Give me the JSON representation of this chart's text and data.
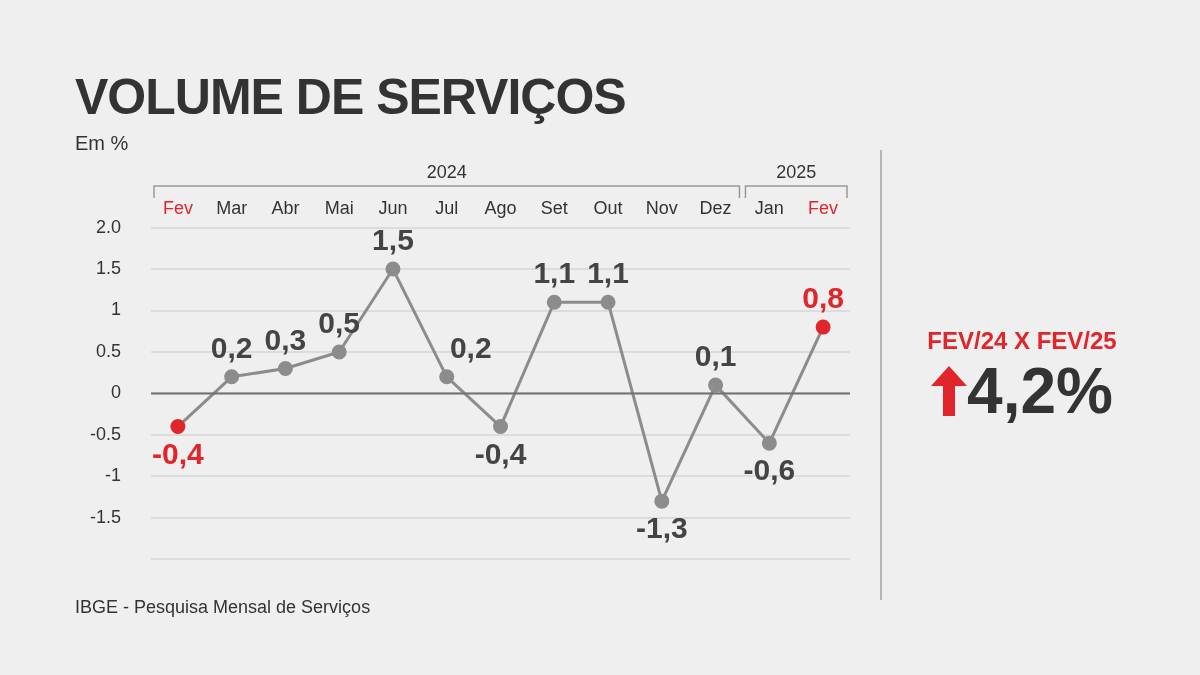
{
  "chart_data": [
    {
      "type": "line",
      "title": "VOLUME DE SERVIÇOS",
      "ylabel": "Em %",
      "categories": [
        "Fev",
        "Mar",
        "Abr",
        "Mai",
        "Jun",
        "Jul",
        "Ago",
        "Set",
        "Out",
        "Nov",
        "Dez",
        "Jan",
        "Fev"
      ],
      "series": [
        {
          "color": "#8c8c8c",
          "colors": [
            "#e0262b",
            "#8c8c8c",
            "#8c8c8c",
            "#8c8c8c",
            "#8c8c8c",
            "#8c8c8c",
            "#8c8c8c",
            "#8c8c8c",
            "#8c8c8c",
            "#8c8c8c",
            "#8c8c8c",
            "#8c8c8c",
            "#e0262b"
          ],
          "values": [
            -0.4,
            0.2,
            0.3,
            0.5,
            1.5,
            0.2,
            -0.4,
            1.1,
            1.1,
            -1.3,
            0.1,
            -0.6,
            0.8
          ],
          "value_labels": [
            "-0,4",
            "0,2",
            "0,3",
            "0,5",
            "1,5",
            "0,2",
            "-0,4",
            "1,1",
            "1,1",
            "-1,3",
            "0,1",
            "-0,6",
            "0,8"
          ]
        }
      ],
      "ylim": [
        -2,
        2
      ],
      "yticks": [
        {
          "value": -2,
          "label": null
        },
        "-1.5",
        "-1",
        "-0.5",
        "0",
        "0.5",
        "1",
        "1.5",
        "2.0"
      ],
      "grid": "y",
      "marker": "circle",
      "line_style": "solid",
      "ref_lines": [
        {
          "axis": "y",
          "value": 0,
          "color": "#707070"
        }
      ],
      "annotations": [
        "2024",
        "2025",
        "IBGE - Pesquisa Mensal de Serviços"
      ]
    },
    {
      "type": "other",
      "title": "FEV/24 X FEV/25",
      "annotations": [
        "4,2%"
      ]
    }
  ]
}
